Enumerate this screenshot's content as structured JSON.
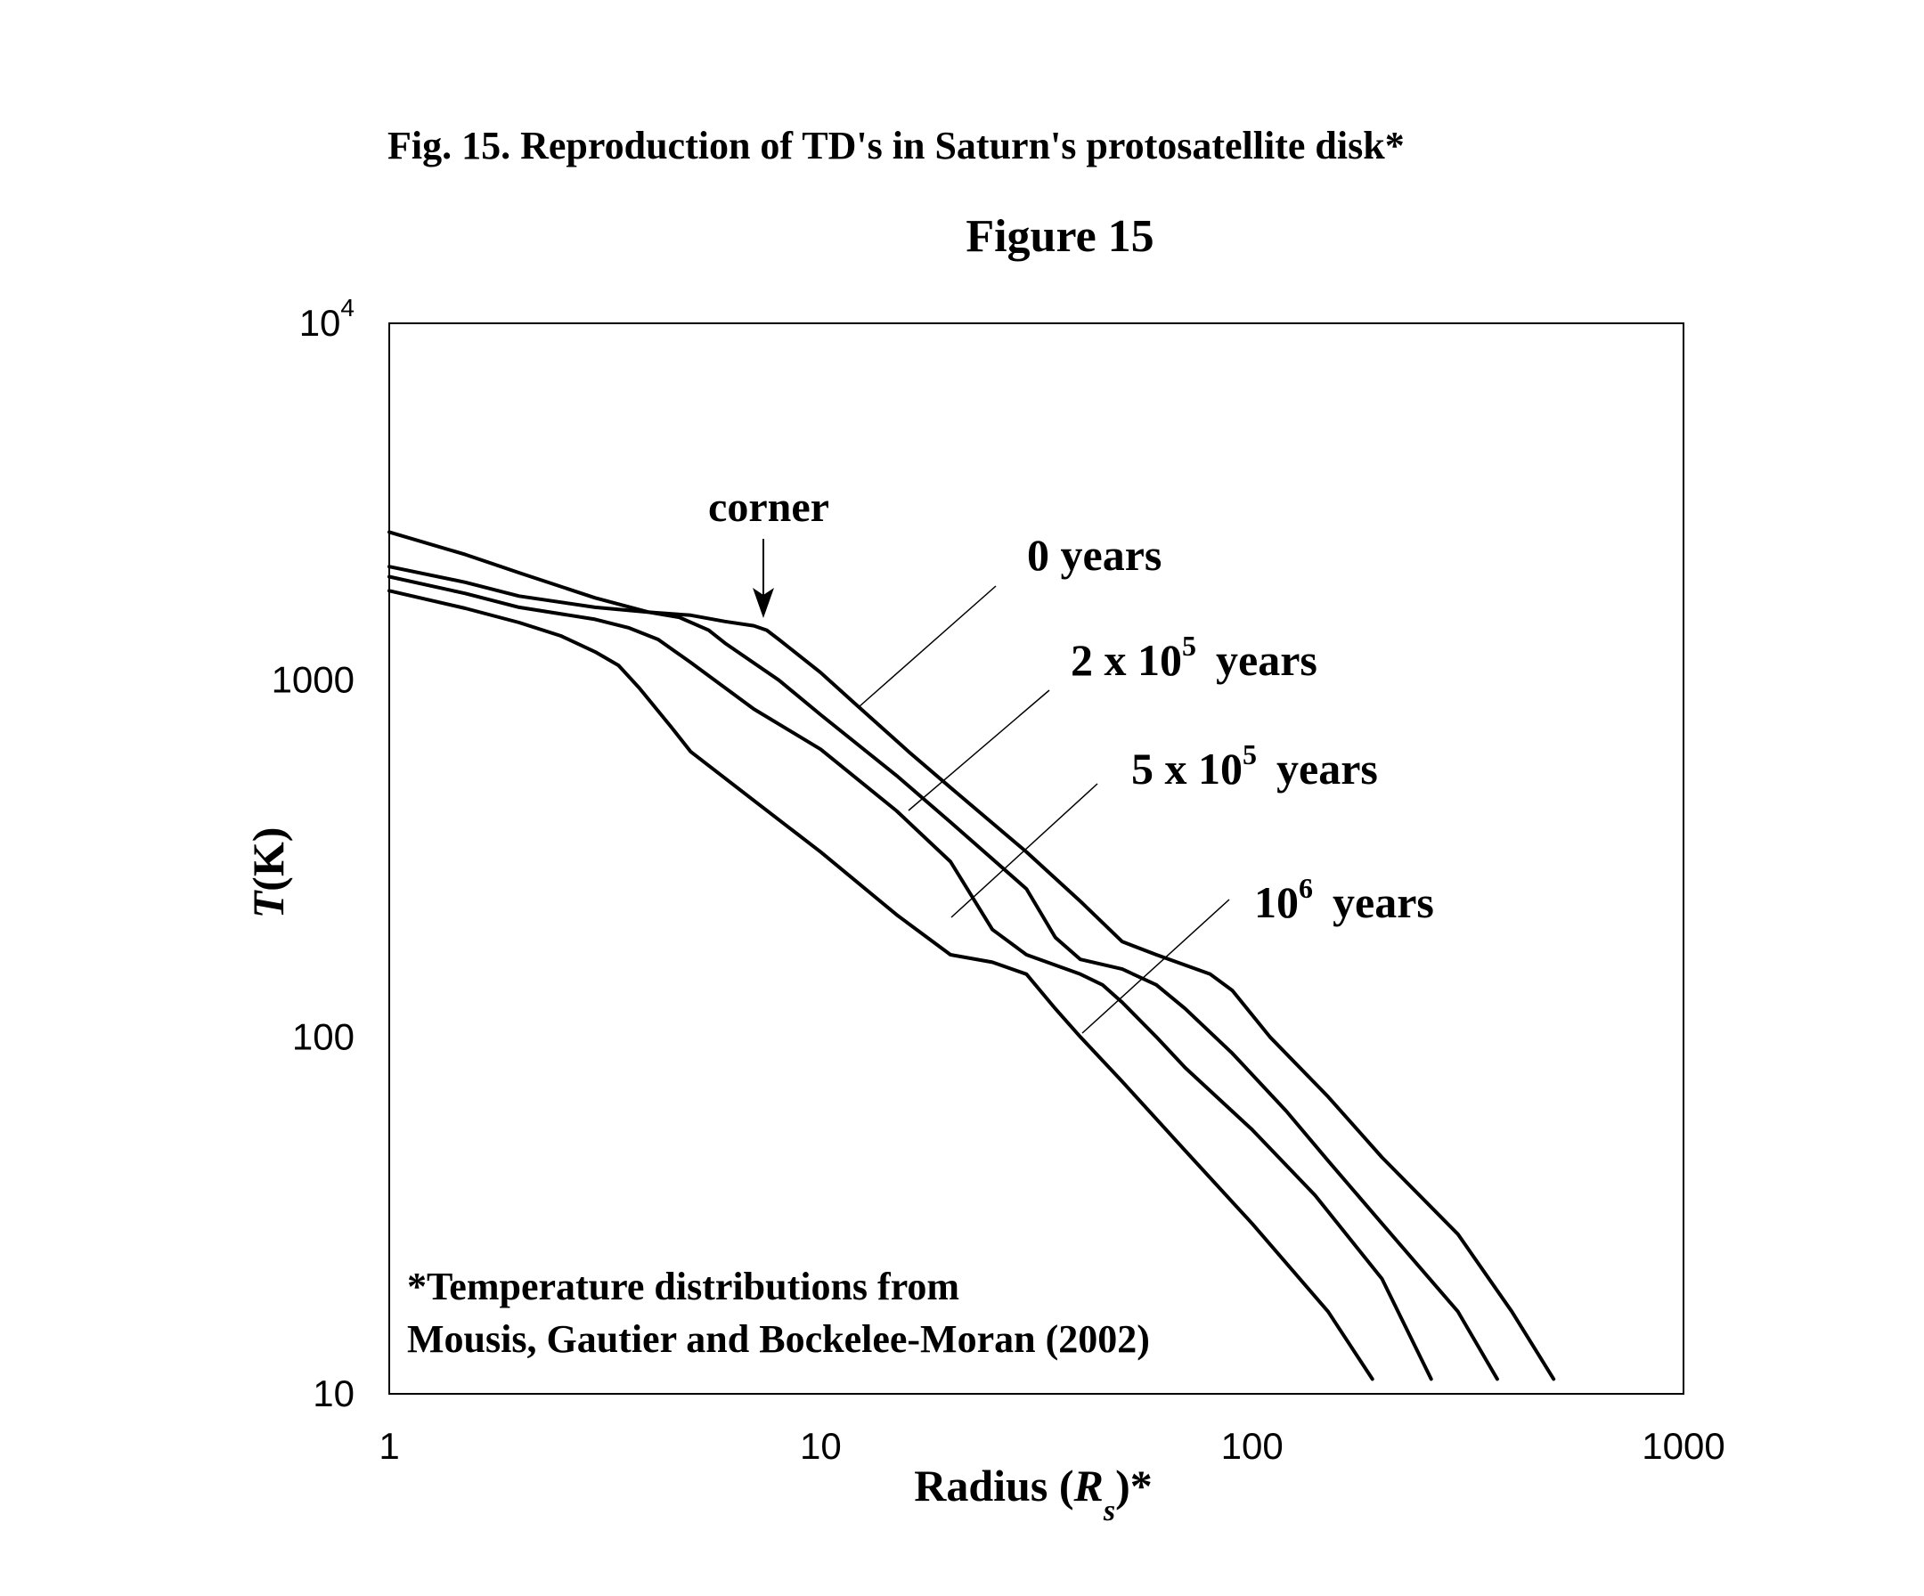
{
  "caption": "Fig. 15. Reproduction of TD's in Saturn's protosatellite disk*",
  "chart_data": {
    "type": "line",
    "title": "Figure 15",
    "xlabel": {
      "text": "Radius (",
      "var": "R",
      "sub": "s",
      "suffix": ")*"
    },
    "ylabel": {
      "var": "T",
      "text": "(K)"
    },
    "xscale": "log",
    "yscale": "log",
    "xlim": [
      1,
      1000
    ],
    "ylim": [
      10,
      10000
    ],
    "xticks": [
      {
        "value": 1,
        "label": "1"
      },
      {
        "value": 10,
        "label": "10"
      },
      {
        "value": 100,
        "label": "100"
      },
      {
        "value": 1000,
        "label": "1000"
      }
    ],
    "yticks": [
      {
        "value": 10,
        "label": "10"
      },
      {
        "value": 100,
        "label": "100"
      },
      {
        "value": 1000,
        "label": "1000"
      },
      {
        "value": 10000,
        "label": "10",
        "sup": "4"
      }
    ],
    "grid": false,
    "line_color": "#000000",
    "series": [
      {
        "name": "0 years",
        "points": [
          [
            1,
            2600
          ],
          [
            1.5,
            2250
          ],
          [
            2,
            2000
          ],
          [
            3,
            1700
          ],
          [
            4,
            1550
          ],
          [
            5,
            1520
          ],
          [
            6,
            1460
          ],
          [
            7,
            1420
          ],
          [
            7.5,
            1380
          ],
          [
            8,
            1300
          ],
          [
            10,
            1050
          ],
          [
            12,
            860
          ],
          [
            16,
            630
          ],
          [
            20,
            500
          ],
          [
            30,
            330
          ],
          [
            40,
            240
          ],
          [
            50,
            185
          ],
          [
            60,
            170
          ],
          [
            80,
            150
          ],
          [
            90,
            135
          ],
          [
            110,
            100
          ],
          [
            150,
            68
          ],
          [
            200,
            46
          ],
          [
            300,
            28
          ],
          [
            400,
            17
          ],
          [
            500,
            11
          ]
        ]
      },
      {
        "name": "2 x 10^5 years",
        "label": {
          "pre": "2 x 10",
          "sup": "5",
          "post": "years"
        },
        "points": [
          [
            1,
            2080
          ],
          [
            1.5,
            1880
          ],
          [
            2,
            1720
          ],
          [
            3,
            1600
          ],
          [
            4,
            1550
          ],
          [
            4.7,
            1500
          ],
          [
            5.5,
            1380
          ],
          [
            6,
            1270
          ],
          [
            8,
            1000
          ],
          [
            10,
            800
          ],
          [
            15,
            540
          ],
          [
            20,
            400
          ],
          [
            30,
            260
          ],
          [
            35,
            190
          ],
          [
            40,
            165
          ],
          [
            50,
            155
          ],
          [
            60,
            140
          ],
          [
            70,
            120
          ],
          [
            90,
            90
          ],
          [
            120,
            62
          ],
          [
            150,
            45
          ],
          [
            200,
            30
          ],
          [
            300,
            17
          ],
          [
            370,
            11
          ]
        ]
      },
      {
        "name": "5 x 10^5 years",
        "label": {
          "pre": "5 x 10",
          "sup": "5",
          "post": "years"
        },
        "points": [
          [
            1,
            1950
          ],
          [
            1.5,
            1750
          ],
          [
            2,
            1600
          ],
          [
            3,
            1480
          ],
          [
            3.6,
            1400
          ],
          [
            4.2,
            1300
          ],
          [
            5,
            1120
          ],
          [
            7,
            830
          ],
          [
            10,
            640
          ],
          [
            15,
            430
          ],
          [
            20,
            310
          ],
          [
            25,
            200
          ],
          [
            30,
            170
          ],
          [
            40,
            150
          ],
          [
            45,
            140
          ],
          [
            50,
            125
          ],
          [
            60,
            100
          ],
          [
            70,
            82
          ],
          [
            100,
            55
          ],
          [
            140,
            36
          ],
          [
            200,
            21
          ],
          [
            260,
            11
          ]
        ]
      },
      {
        "name": "10^6 years",
        "label": {
          "pre": "10",
          "sup": "6",
          "post": "years"
        },
        "points": [
          [
            1,
            1780
          ],
          [
            1.5,
            1590
          ],
          [
            2,
            1450
          ],
          [
            2.5,
            1330
          ],
          [
            3,
            1200
          ],
          [
            3.4,
            1100
          ],
          [
            3.8,
            950
          ],
          [
            4.5,
            740
          ],
          [
            5,
            630
          ],
          [
            7,
            460
          ],
          [
            10,
            330
          ],
          [
            15,
            220
          ],
          [
            20,
            170
          ],
          [
            25,
            162
          ],
          [
            30,
            150
          ],
          [
            35,
            120
          ],
          [
            40,
            100
          ],
          [
            50,
            75
          ],
          [
            70,
            48
          ],
          [
            100,
            30
          ],
          [
            150,
            17
          ],
          [
            190,
            11
          ]
        ]
      }
    ],
    "annotations": [
      {
        "id": "corner",
        "text": "corner"
      },
      {
        "id": "note_line1",
        "text": "*Temperature distributions from"
      },
      {
        "id": "note_line2",
        "text": "Mousis, Gautier and Bockelee-Moran (2002)"
      }
    ]
  }
}
